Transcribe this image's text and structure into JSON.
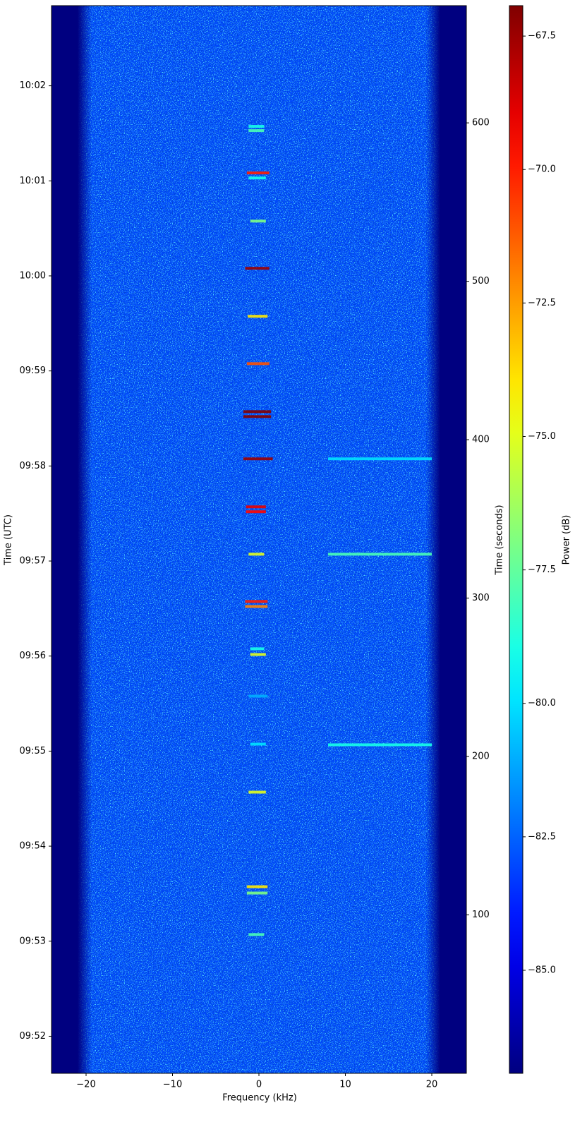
{
  "chart_data": {
    "type": "spectrogram",
    "xlabel": "Frequency (kHz)",
    "ylabel": "Time (UTC)",
    "y2label": "Time (seconds)",
    "colorbar_label": "Power (dB)",
    "colormap": "jet",
    "xlim": [
      -24,
      24
    ],
    "xticks": [
      {
        "value": -20,
        "label": "−20"
      },
      {
        "value": -10,
        "label": "−10"
      },
      0,
      10,
      20
    ],
    "ylim": [
      0,
      674
    ],
    "yticks": [
      {
        "value": 23.4,
        "label": "09:52"
      },
      {
        "value": 83.4,
        "label": "09:53"
      },
      {
        "value": 143.4,
        "label": "09:54"
      },
      {
        "value": 203.4,
        "label": "09:55"
      },
      {
        "value": 263.4,
        "label": "09:56"
      },
      {
        "value": 323.4,
        "label": "09:57"
      },
      {
        "value": 383.4,
        "label": "09:58"
      },
      {
        "value": 443.4,
        "label": "09:59"
      },
      {
        "value": 503.4,
        "label": "10:00"
      },
      {
        "value": 563.4,
        "label": "10:01"
      },
      {
        "value": 623.4,
        "label": "10:02"
      }
    ],
    "y2lim": [
      0,
      674
    ],
    "y2ticks": [
      100,
      200,
      300,
      400,
      500,
      600
    ],
    "clim": [
      -86.93,
      -66.93
    ],
    "cticks": [
      {
        "value": -85,
        "label": "−85.0"
      },
      {
        "value": -82.5,
        "label": "−82.5"
      },
      {
        "value": -80,
        "label": "−80.0"
      },
      {
        "value": -77.5,
        "label": "−77.5"
      },
      {
        "value": -75,
        "label": "−75.0"
      },
      {
        "value": -72.5,
        "label": "−72.5"
      },
      {
        "value": -70,
        "label": "−70.0"
      },
      {
        "value": -67.5,
        "label": "−67.5"
      }
    ],
    "noise_band": {
      "x": [
        -20,
        20
      ],
      "power": -83
    },
    "signals": [
      {
        "t": 597.8,
        "f": [
          -1.2,
          0.6
        ],
        "power": -79
      },
      {
        "t": 595.1,
        "f": [
          -1.2,
          0.6
        ],
        "power": -78
      },
      {
        "t": 568.4,
        "f": [
          -1.4,
          1.2
        ],
        "power": -70
      },
      {
        "t": 565.2,
        "f": [
          -1.2,
          0.8
        ],
        "power": -79
      },
      {
        "t": 538.0,
        "f": [
          -1.0,
          0.8
        ],
        "power": -77
      },
      {
        "t": 508.2,
        "f": [
          -1.6,
          1.2
        ],
        "power": -67.5
      },
      {
        "t": 477.9,
        "f": [
          -1.3,
          1.0
        ],
        "power": -74
      },
      {
        "t": 448.0,
        "f": [
          -1.4,
          1.2
        ],
        "power": -71
      },
      {
        "t": 417.7,
        "f": [
          -1.8,
          1.4
        ],
        "power": -67
      },
      {
        "t": 414.6,
        "f": [
          -1.8,
          1.4
        ],
        "power": -67
      },
      {
        "t": 387.9,
        "f": [
          -1.8,
          1.6
        ],
        "power": -67.5
      },
      {
        "t": 357.6,
        "f": [
          -1.5,
          0.8
        ],
        "power": -69
      },
      {
        "t": 354.5,
        "f": [
          -1.5,
          0.8
        ],
        "power": -69.5
      },
      {
        "t": 327.7,
        "f": [
          -1.2,
          0.6
        ],
        "power": -75
      },
      {
        "t": 297.9,
        "f": [
          -1.6,
          1.0
        ],
        "power": -70
      },
      {
        "t": 294.7,
        "f": [
          -1.6,
          1.0
        ],
        "power": -72
      },
      {
        "t": 268.0,
        "f": [
          -1.0,
          0.6
        ],
        "power": -79
      },
      {
        "t": 264.4,
        "f": [
          -1.0,
          0.8
        ],
        "power": -75
      },
      {
        "t": 238.1,
        "f": [
          -1.2,
          1.0
        ],
        "power": -81
      },
      {
        "t": 207.8,
        "f": [
          -1.0,
          0.8
        ],
        "power": -80
      },
      {
        "t": 177.5,
        "f": [
          -1.2,
          0.8
        ],
        "power": -75
      },
      {
        "t": 117.8,
        "f": [
          -1.4,
          1.0
        ],
        "power": -74
      },
      {
        "t": 113.8,
        "f": [
          -1.4,
          1.0
        ],
        "power": -77
      },
      {
        "t": 87.6,
        "f": [
          -1.2,
          0.6
        ],
        "power": -78
      },
      {
        "t": 387.9,
        "f": [
          8,
          20
        ],
        "power": -80
      },
      {
        "t": 327.7,
        "f": [
          8,
          20
        ],
        "power": -78
      },
      {
        "t": 207.4,
        "f": [
          8,
          20
        ],
        "power": -79
      }
    ]
  }
}
